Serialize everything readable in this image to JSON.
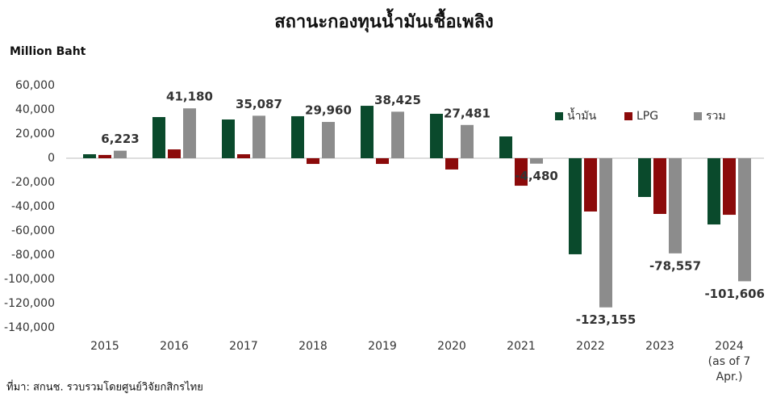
{
  "chart_data": {
    "type": "bar",
    "title": "สถานะกองทุนน้ำมันเชื้อเพลิง",
    "y_label": "Million Baht",
    "source": "ที่มา: สกนช. รวบรวมโดยศูนย์วิจัยกสิกรไทย",
    "categories": [
      "2015",
      "2016",
      "2017",
      "2018",
      "2019",
      "2020",
      "2021",
      "2022",
      "2023",
      "2024\n(as of 7\nApr.)"
    ],
    "series": [
      {
        "name": "น้ำมัน",
        "color": "#0a4a2c",
        "values": [
          3300,
          34000,
          32000,
          34700,
          43300,
          36700,
          18000,
          -79300,
          -32000,
          -54700
        ]
      },
      {
        "name": "LPG",
        "color": "#8b0a0a",
        "values": [
          2700,
          7300,
          3300,
          -4700,
          -4700,
          -9300,
          -22700,
          -44000,
          -46000,
          -46700
        ]
      },
      {
        "name": "รวม",
        "color": "#8c8c8c",
        "values": [
          6223,
          41180,
          35087,
          29960,
          38425,
          27481,
          -4480,
          -123155,
          -78557,
          -101606
        ],
        "value_labels": [
          "6,223",
          "41,180",
          "35,087",
          "29,960",
          "38,425",
          "27,481",
          "-4,480",
          "-123,155",
          "-78,557",
          "-101,606"
        ]
      }
    ],
    "ylim": [
      -140000,
      60000
    ],
    "yticks": [
      {
        "value": 60000,
        "label": "60,000"
      },
      {
        "value": 40000,
        "label": "40,000"
      },
      {
        "value": 20000,
        "label": "20,000"
      },
      0,
      {
        "value": -20000,
        "label": "-20,000"
      },
      {
        "value": -40000,
        "label": "-40,000"
      },
      {
        "value": -60000,
        "label": "-60,000"
      },
      {
        "value": -80000,
        "label": "-80,000"
      },
      {
        "value": -100000,
        "label": "-100,000"
      },
      {
        "value": -120000,
        "label": "-120,000"
      },
      {
        "value": -140000,
        "label": "-140,000"
      }
    ],
    "legend": "top-right",
    "grid": false
  }
}
